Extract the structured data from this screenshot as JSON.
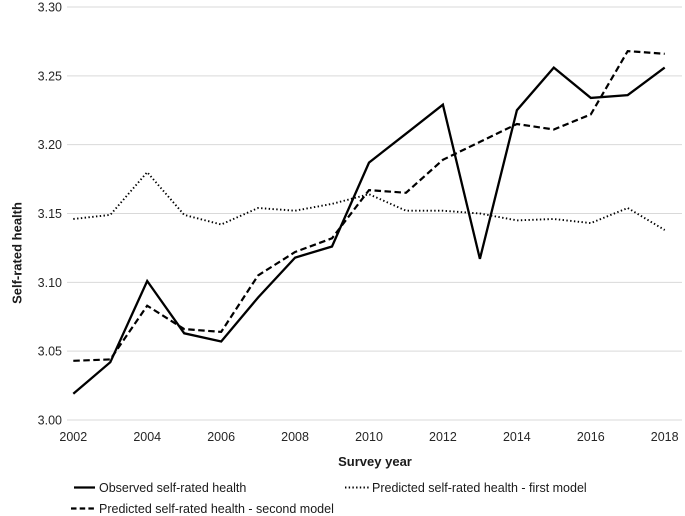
{
  "chart_data": {
    "type": "line",
    "title": "",
    "xlabel": "Survey year",
    "ylabel": "Self-rated health",
    "x": [
      2002,
      2003,
      2004,
      2005,
      2006,
      2007,
      2008,
      2009,
      2010,
      2011,
      2012,
      2013,
      2014,
      2015,
      2016,
      2017,
      2018
    ],
    "x_tick_labels": [
      "2002",
      "2004",
      "2006",
      "2008",
      "2010",
      "2012",
      "2014",
      "2016",
      "2018"
    ],
    "y_tick_labels": [
      "3.00",
      "3.05",
      "3.10",
      "3.15",
      "3.20",
      "3.25",
      "3.30"
    ],
    "ylim": [
      3.0,
      3.3
    ],
    "grid": "horizontal",
    "legend_position": "bottom",
    "line_color": "#000000",
    "grid_color": "#d9d9d9",
    "text_color": "#262626",
    "series": [
      {
        "name": "Observed self-rated health",
        "slug": "observed",
        "style": "solid",
        "values": [
          3.019,
          3.042,
          3.101,
          3.063,
          3.057,
          3.089,
          3.118,
          3.126,
          3.187,
          3.208,
          3.229,
          3.117,
          3.225,
          3.256,
          3.234,
          3.236,
          3.256
        ]
      },
      {
        "name": "Predicted self-rated health - first model",
        "slug": "first-model",
        "style": "dotted",
        "values": [
          3.146,
          3.149,
          3.18,
          3.149,
          3.142,
          3.154,
          3.152,
          3.157,
          3.164,
          3.152,
          3.152,
          3.15,
          3.145,
          3.146,
          3.143,
          3.154,
          3.138
        ]
      },
      {
        "name": "Predicted self-rated health - second model",
        "slug": "second-model",
        "style": "dashed",
        "values": [
          3.043,
          3.044,
          3.083,
          3.066,
          3.064,
          3.105,
          3.122,
          3.132,
          3.167,
          3.165,
          3.189,
          3.202,
          3.215,
          3.211,
          3.222,
          3.268,
          3.266
        ]
      }
    ]
  }
}
